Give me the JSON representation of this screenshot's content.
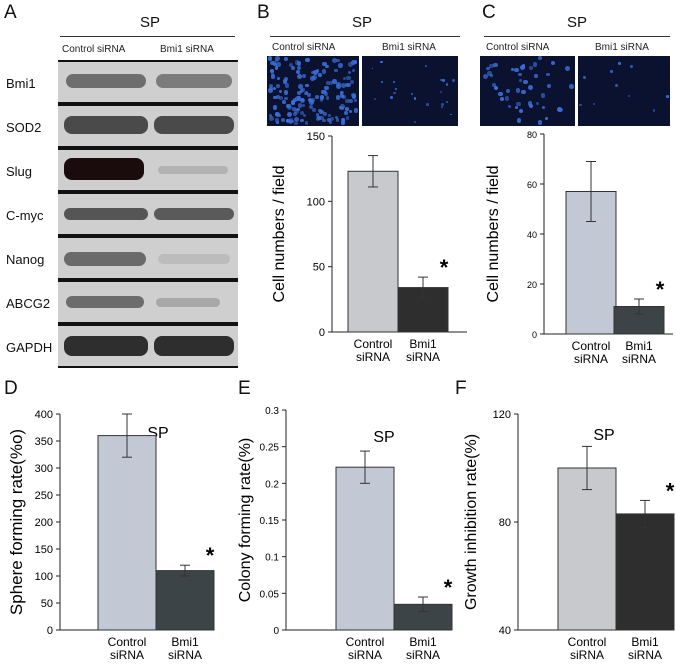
{
  "panels": {
    "A": {
      "letter": "A",
      "sp": "SP",
      "col1": "Control siRNA",
      "col2": "Bmi1 siRNA",
      "rows": [
        "Bmi1",
        "SOD2",
        "Slug",
        "C-myc",
        "Nanog",
        "ABCG2",
        "GAPDH"
      ]
    },
    "B": {
      "letter": "B",
      "sp": "SP",
      "col1": "Control siRNA",
      "col2": "Bmi1 siRNA"
    },
    "C": {
      "letter": "C",
      "sp": "SP",
      "col1": "Control siRNA",
      "col2": "Bmi1 siRNA"
    },
    "D": {
      "letter": "D"
    },
    "E": {
      "letter": "E"
    },
    "F": {
      "letter": "F"
    }
  },
  "chart_data": [
    {
      "id": "B",
      "type": "bar",
      "categories": [
        "Control\nsiRNA",
        "Bmi1\nsiRNA"
      ],
      "values": [
        123,
        34
      ],
      "errors": [
        12,
        8
      ],
      "ylabel": "Cell numbers / field",
      "ylim": [
        0,
        150
      ],
      "yticks": [
        0,
        50,
        100,
        150
      ],
      "significant": [
        false,
        true
      ],
      "colors": [
        "#c7c9cc",
        "#2e2e2e"
      ]
    },
    {
      "id": "C",
      "type": "bar",
      "categories": [
        "Control\nsiRNA",
        "Bmi1\nsiRNA"
      ],
      "values": [
        57,
        11
      ],
      "errors": [
        12,
        3
      ],
      "ylabel": "Cell numbers / field",
      "ylim": [
        0,
        80
      ],
      "yticks": [
        0,
        20,
        40,
        60,
        80
      ],
      "significant": [
        false,
        true
      ],
      "colors": [
        "#c2c9d4",
        "#3d4448"
      ]
    },
    {
      "id": "D",
      "type": "bar",
      "title": "SP",
      "categories": [
        "Control\nsiRNA",
        "Bmi1\nsiRNA"
      ],
      "values": [
        360,
        110
      ],
      "errors": [
        40,
        10
      ],
      "ylabel": "Sphere forming rate(%o)",
      "ylim": [
        0,
        400
      ],
      "yticks": [
        0,
        50,
        100,
        150,
        200,
        250,
        300,
        350,
        400
      ],
      "significant": [
        false,
        true
      ],
      "colors": [
        "#c2c9d4",
        "#3d4448"
      ]
    },
    {
      "id": "E",
      "type": "bar",
      "title": "SP",
      "categories": [
        "Control\nsiRNA",
        "Bmi1\nsiRNA"
      ],
      "values": [
        0.222,
        0.035
      ],
      "errors": [
        0.022,
        0.01
      ],
      "ylabel": "Colony forming rate(%)",
      "ylim": [
        0,
        0.3
      ],
      "yticks": [
        0,
        0.05,
        0.1,
        0.15,
        0.2,
        0.25,
        0.3
      ],
      "yticklabels": [
        "0",
        "0.05",
        "0.1",
        "0.15",
        "0.2",
        "0.25",
        "0.3"
      ],
      "significant": [
        false,
        true
      ],
      "colors": [
        "#c2c9d4",
        "#3d4448"
      ]
    },
    {
      "id": "F",
      "type": "bar",
      "title": "SP",
      "categories": [
        "Control\nsiRNA",
        "Bmi1\nsiRNA"
      ],
      "values": [
        100,
        83
      ],
      "errors": [
        8,
        5
      ],
      "ylabel": "Growth inhibition rate(%)",
      "ylim": [
        40,
        120
      ],
      "yticks": [
        40,
        80,
        120
      ],
      "significant": [
        false,
        true
      ],
      "colors": [
        "#c7c9cc",
        "#2e2e2e"
      ]
    }
  ],
  "asterisk": "*"
}
